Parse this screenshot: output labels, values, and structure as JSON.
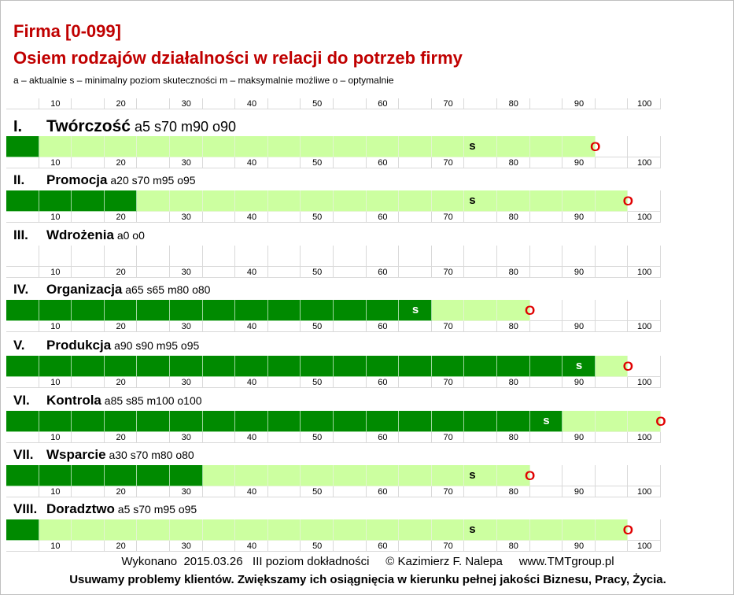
{
  "header": {
    "title": "Firma [0-099]",
    "subtitle": "Osiem rodzajów działalności w relacji do potrzeb firmy",
    "legend": "a – aktualnie   s – minimalny poziom skuteczności  m – maksymalnie możliwe  o – optymalnie"
  },
  "footer": {
    "line1": "Wykonano  2015.03.26   III poziom dokładności     © Kazimierz F. Nalepa     www.TMTgroup.pl",
    "line2": "Usuwamy problemy klientów. Zwiększamy ich osiągnięcia w kierunku pełnej jakości Biznesu, Pracy, Życia."
  },
  "chart_data": {
    "type": "bar",
    "xlim": [
      0,
      100
    ],
    "x_ticks": [
      "10",
      "20",
      "30",
      "40",
      "50",
      "60",
      "70",
      "80",
      "90",
      "100"
    ],
    "marker_labels": {
      "s": "s",
      "o": "O"
    },
    "colors": {
      "actual": "#008a00",
      "potential": "#ccffa0",
      "marker_o": "#e00000"
    },
    "categories": [
      {
        "roman": "I.",
        "name": "Twórczość",
        "details": "a5  s70  m90 o90",
        "a": 5,
        "s": 70,
        "m": 90,
        "o": 90
      },
      {
        "roman": "II.",
        "name": "Promocja",
        "details": "a20  s70  m95 o95",
        "a": 20,
        "s": 70,
        "m": 95,
        "o": 95
      },
      {
        "roman": "III.",
        "name": "Wdrożenia",
        "details": "a0  o0",
        "a": 0,
        "s": null,
        "m": 0,
        "o": null
      },
      {
        "roman": "IV.",
        "name": "Organizacja",
        "details": "a65  s65  m80  o80",
        "a": 65,
        "s": 65,
        "m": 80,
        "o": 80
      },
      {
        "roman": "V.",
        "name": "Produkcja",
        "details": "a90  s90 m95  o95",
        "a": 90,
        "s": 90,
        "m": 95,
        "o": 95
      },
      {
        "roman": "VI.",
        "name": "Kontrola",
        "details": "a85  s85  m100  o100",
        "a": 85,
        "s": 85,
        "m": 100,
        "o": 100
      },
      {
        "roman": "VII.",
        "name": "Wsparcie",
        "details": "a30  s70  m80  o80",
        "a": 30,
        "s": 70,
        "m": 80,
        "o": 80
      },
      {
        "roman": "VIII.",
        "name": "Doradztwo",
        "details": "a5  s70  m95  o95",
        "a": 5,
        "s": 70,
        "m": 95,
        "o": 95
      }
    ]
  }
}
